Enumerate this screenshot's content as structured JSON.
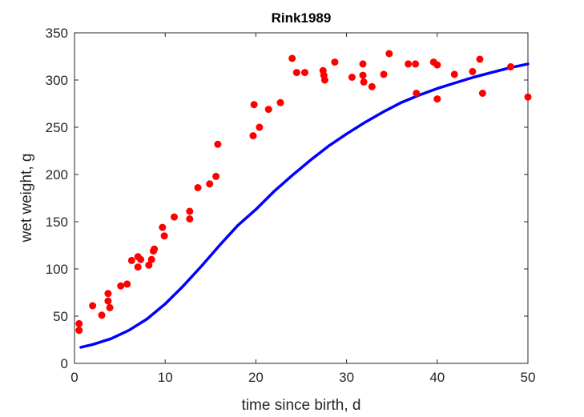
{
  "chart_data": {
    "type": "scatter",
    "title": "Rink1989",
    "xlabel": "time since birth, d",
    "ylabel": "wet weight, g",
    "xlim": [
      0,
      50
    ],
    "ylim": [
      0,
      350
    ],
    "xticks": [
      0,
      10,
      20,
      30,
      40,
      50
    ],
    "yticks": [
      0,
      50,
      100,
      150,
      200,
      250,
      300,
      350
    ],
    "grid": false,
    "legend": "none",
    "series": [
      {
        "kind": "scatter",
        "color": "#ff0000",
        "points": [
          [
            0.5,
            42
          ],
          [
            0.5,
            35
          ],
          [
            2.0,
            61
          ],
          [
            3.0,
            51
          ],
          [
            3.7,
            74
          ],
          [
            3.7,
            66
          ],
          [
            3.9,
            59
          ],
          [
            5.1,
            82
          ],
          [
            5.8,
            84
          ],
          [
            6.3,
            109
          ],
          [
            7.0,
            113
          ],
          [
            7.0,
            102
          ],
          [
            7.3,
            110
          ],
          [
            8.2,
            104
          ],
          [
            8.5,
            110
          ],
          [
            8.7,
            119
          ],
          [
            8.8,
            121
          ],
          [
            9.7,
            144
          ],
          [
            9.9,
            135
          ],
          [
            11.0,
            155
          ],
          [
            12.7,
            161
          ],
          [
            12.7,
            153
          ],
          [
            13.6,
            186
          ],
          [
            14.9,
            190
          ],
          [
            15.6,
            198
          ],
          [
            15.8,
            232
          ],
          [
            19.7,
            241
          ],
          [
            19.8,
            274
          ],
          [
            20.4,
            250
          ],
          [
            21.4,
            269
          ],
          [
            22.7,
            276
          ],
          [
            24.0,
            323
          ],
          [
            24.5,
            308
          ],
          [
            25.4,
            308
          ],
          [
            27.4,
            310
          ],
          [
            27.5,
            305
          ],
          [
            27.6,
            300
          ],
          [
            28.7,
            319
          ],
          [
            30.6,
            303
          ],
          [
            31.8,
            317
          ],
          [
            31.8,
            305
          ],
          [
            31.9,
            298
          ],
          [
            32.8,
            293
          ],
          [
            34.1,
            306
          ],
          [
            34.7,
            328
          ],
          [
            36.8,
            317
          ],
          [
            37.6,
            317
          ],
          [
            37.7,
            286
          ],
          [
            39.6,
            319
          ],
          [
            40.0,
            316
          ],
          [
            40.0,
            280
          ],
          [
            41.9,
            306
          ],
          [
            43.9,
            309
          ],
          [
            44.7,
            322
          ],
          [
            45.0,
            286
          ],
          [
            48.1,
            314
          ],
          [
            50.0,
            282
          ]
        ]
      },
      {
        "kind": "line",
        "color": "#0000ff",
        "points": [
          [
            0.7,
            17
          ],
          [
            2,
            20
          ],
          [
            4,
            26
          ],
          [
            6,
            35
          ],
          [
            8,
            47
          ],
          [
            10,
            63
          ],
          [
            12,
            82
          ],
          [
            14,
            103
          ],
          [
            16,
            125
          ],
          [
            18,
            146
          ],
          [
            20,
            163
          ],
          [
            22,
            182
          ],
          [
            24,
            199
          ],
          [
            26,
            215
          ],
          [
            28,
            230
          ],
          [
            30,
            243
          ],
          [
            32,
            255
          ],
          [
            34,
            266
          ],
          [
            36,
            276
          ],
          [
            38,
            284
          ],
          [
            40,
            291
          ],
          [
            42,
            297
          ],
          [
            44,
            303
          ],
          [
            46,
            308
          ],
          [
            48,
            313
          ],
          [
            50,
            317
          ]
        ]
      }
    ]
  }
}
